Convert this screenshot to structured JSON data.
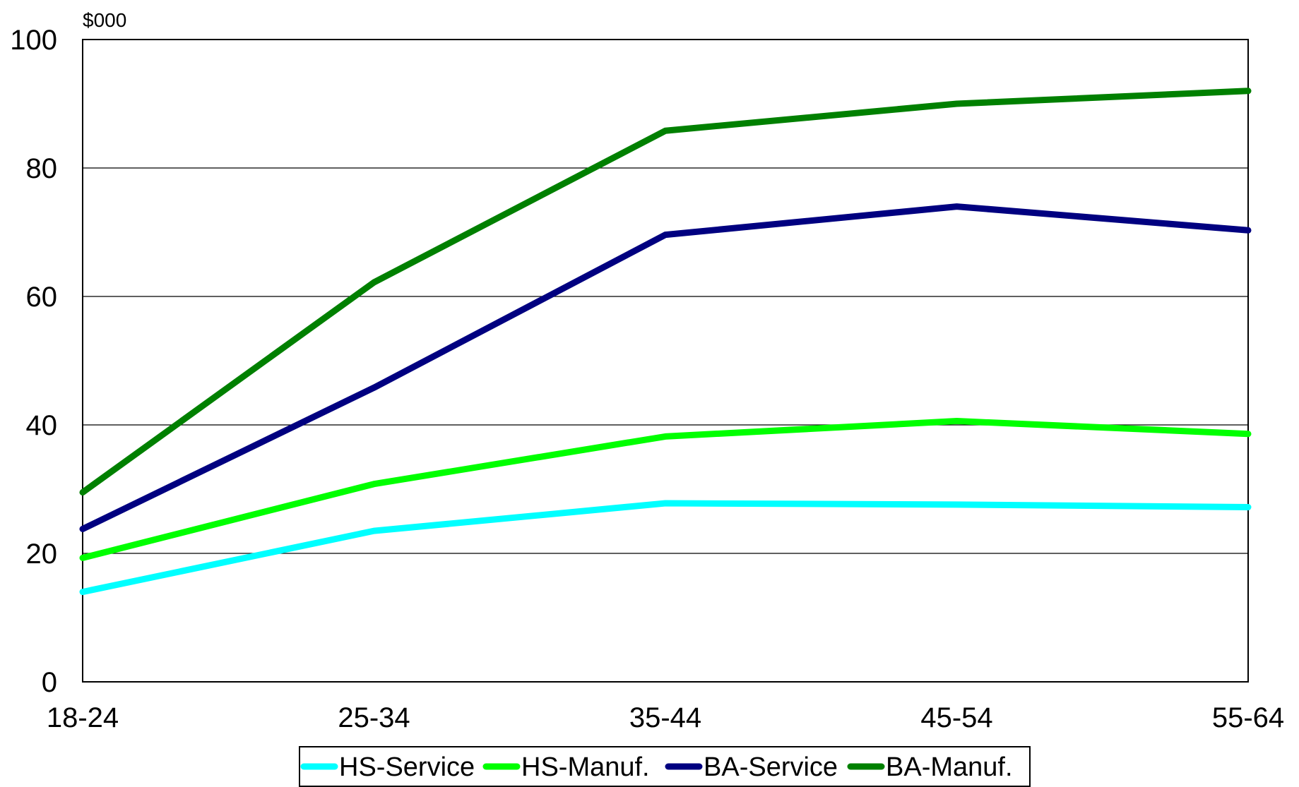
{
  "chart_data": {
    "type": "line",
    "title": "",
    "xlabel": "",
    "ylabel": "",
    "y_unit_label": "$000",
    "categories": [
      "18-24",
      "25-34",
      "35-44",
      "45-54",
      "55-64"
    ],
    "ylim": [
      0,
      100
    ],
    "yticks": [
      0,
      20,
      40,
      60,
      80,
      100
    ],
    "grid": true,
    "legend_position": "bottom",
    "series": [
      {
        "name": "HS-Service",
        "color": "#00FFFF",
        "values": [
          14,
          23.5,
          27.8,
          27.6,
          27.2
        ]
      },
      {
        "name": "HS-Manuf.",
        "color": "#00FF00",
        "values": [
          19.3,
          30.8,
          38.2,
          40.6,
          38.6
        ]
      },
      {
        "name": "BA-Service",
        "color": "#000080",
        "values": [
          23.8,
          45.8,
          69.6,
          74,
          70.3
        ]
      },
      {
        "name": "BA-Manuf.",
        "color": "#008000",
        "values": [
          29.5,
          62.2,
          85.8,
          90,
          92
        ]
      }
    ]
  }
}
